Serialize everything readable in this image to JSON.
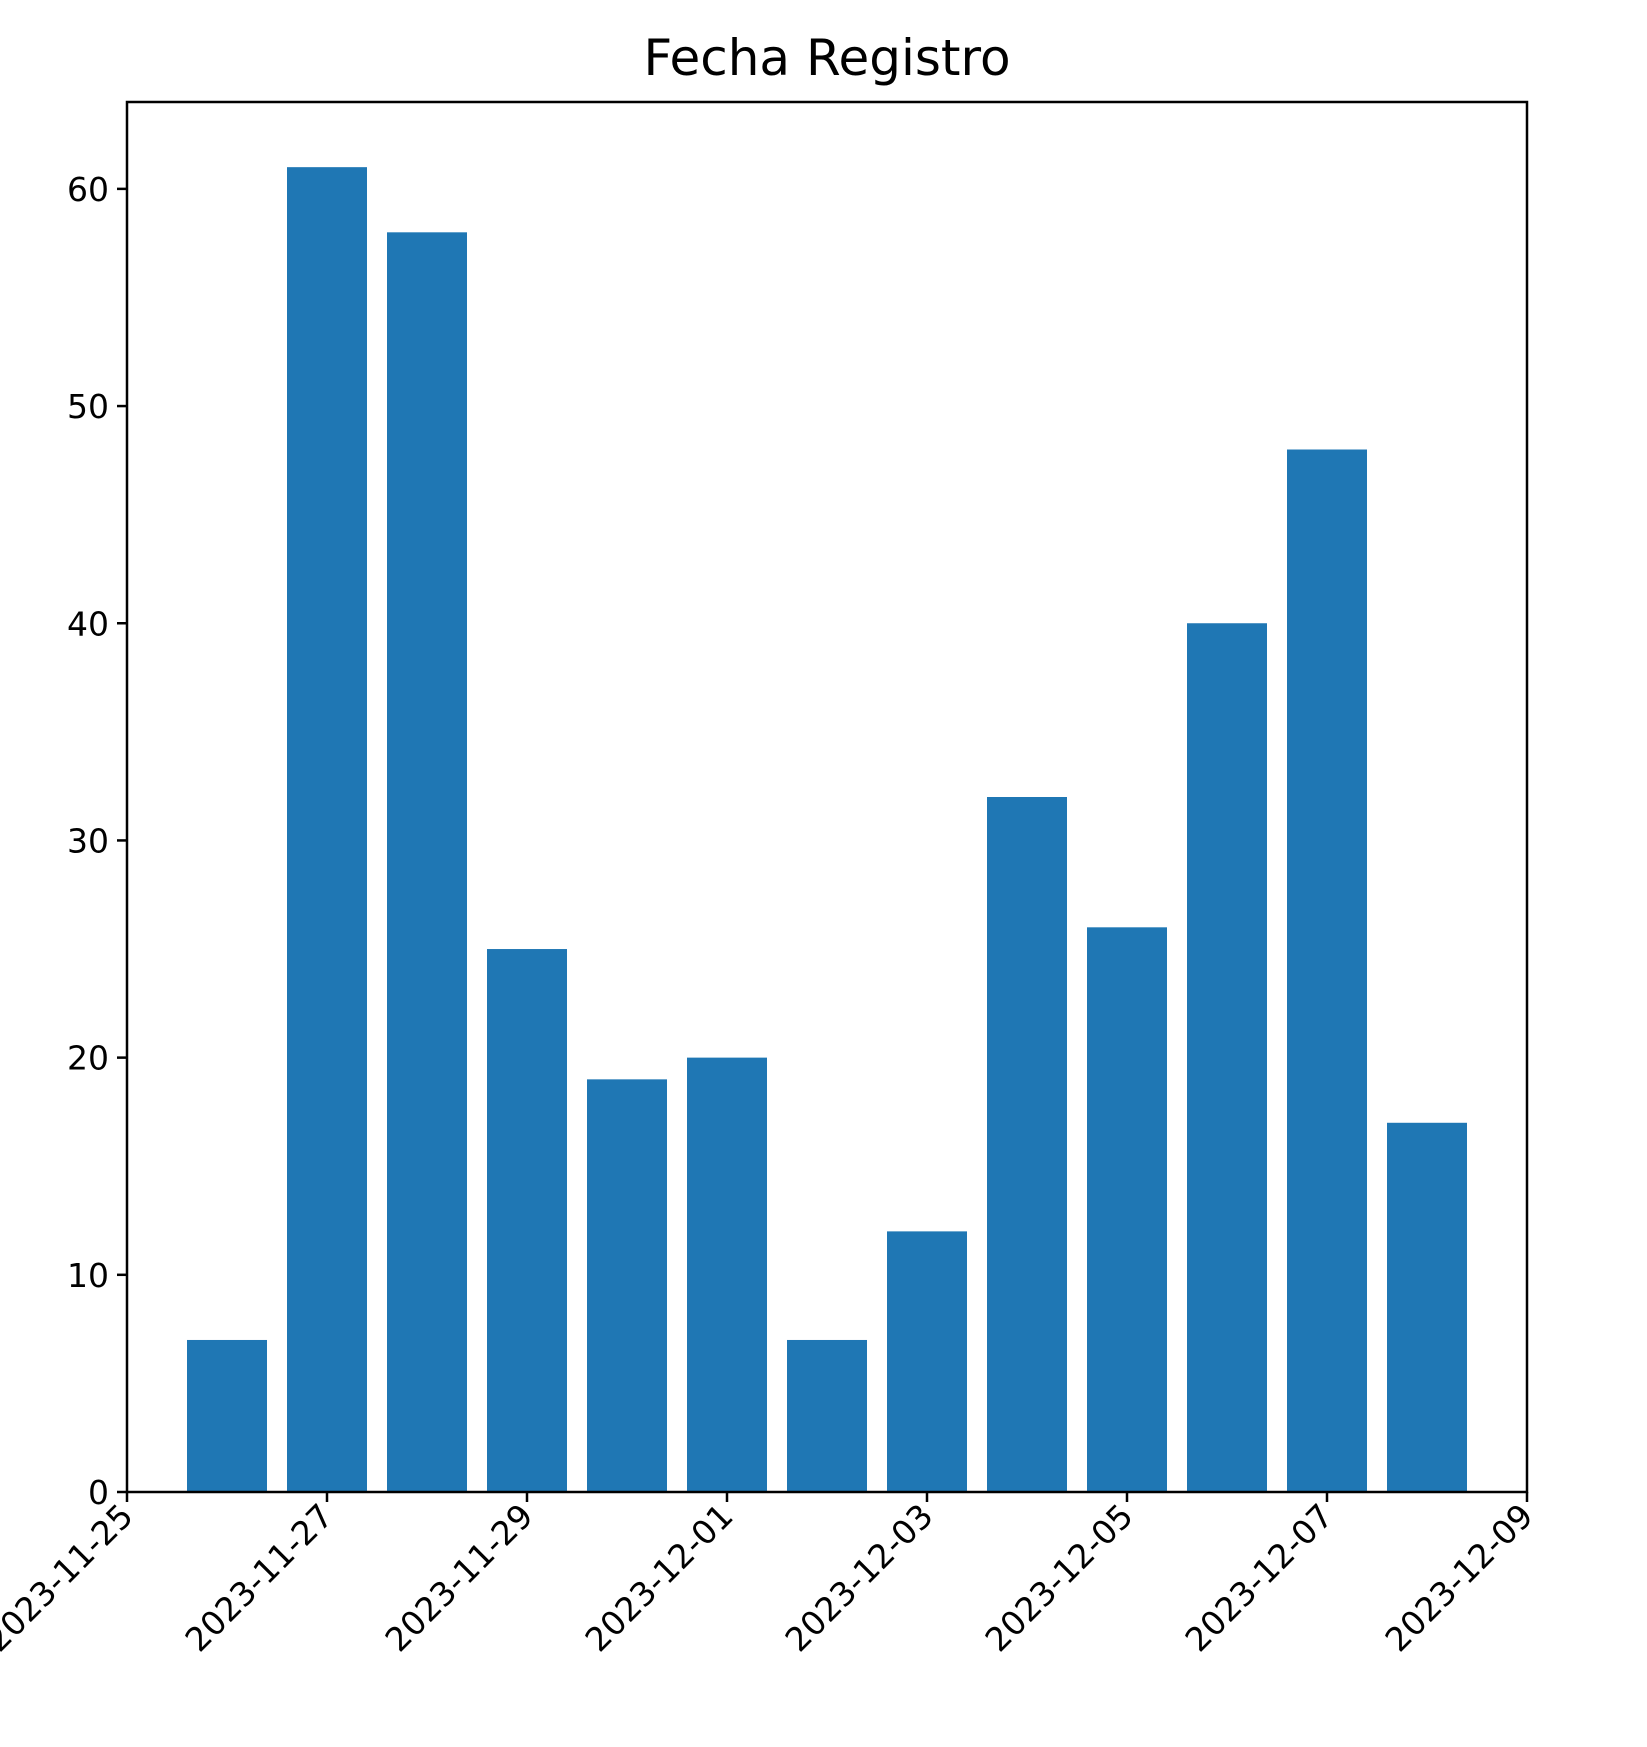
{
  "chart_data": {
    "type": "bar",
    "title": "Fecha Registro",
    "xlabel": "",
    "ylabel": "",
    "x_axis_type": "date",
    "categories": [
      "2023-11-26",
      "2023-11-27",
      "2023-11-28",
      "2023-11-29",
      "2023-11-30",
      "2023-12-01",
      "2023-12-02",
      "2023-12-03",
      "2023-12-04",
      "2023-12-05",
      "2023-12-06",
      "2023-12-07",
      "2023-12-08"
    ],
    "values": [
      7,
      61,
      58,
      25,
      19,
      20,
      7,
      12,
      32,
      26,
      40,
      48,
      17
    ],
    "xlim": [
      "2023-11-25",
      "2023-12-09"
    ],
    "ylim": [
      0,
      64
    ],
    "x_ticks": [
      "2023-11-25",
      "2023-11-27",
      "2023-11-29",
      "2023-12-01",
      "2023-12-03",
      "2023-12-05",
      "2023-12-07",
      "2023-12-09"
    ],
    "y_ticks": [
      0,
      10,
      20,
      30,
      40,
      50,
      60
    ],
    "bar_color": "#1f77b4",
    "grid": false,
    "legend": "none"
  }
}
